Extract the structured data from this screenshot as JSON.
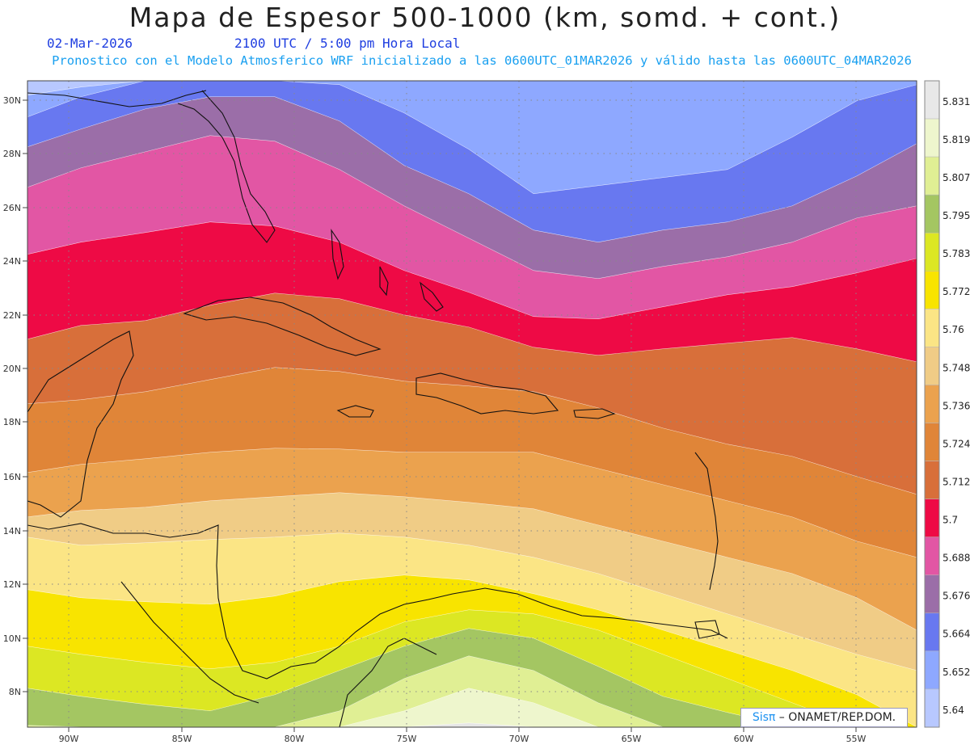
{
  "header": {
    "title": "Mapa de Espesor 500-1000 (km, somd. + cont.)",
    "date": "02-Mar-2026",
    "time": "2100 UTC / 5:00 pm Hora Local",
    "subtitle": "Pronostico con el Modelo Atmosferico WRF inicializado a las 0600UTC_01MAR2026 y válido hasta las  0600UTC_04MAR2026"
  },
  "map": {
    "lon_labels": [
      "90W",
      "85W",
      "80W",
      "75W",
      "70W",
      "65W",
      "60W",
      "55W"
    ],
    "lat_labels": [
      "30N",
      "28N",
      "26N",
      "24N",
      "22N",
      "20N",
      "18N",
      "16N",
      "14N",
      "12N",
      "10N",
      "8N"
    ],
    "field": "500-1000 hPa thickness (km)",
    "bands_north_to_south": [
      {
        "value": "5.64",
        "color": "#b8c8ff"
      },
      {
        "value": "5.652",
        "color": "#8ea8ff"
      },
      {
        "value": "5.664",
        "color": "#6878f0"
      },
      {
        "value": "5.676",
        "color": "#9b6ea8"
      },
      {
        "value": "5.688",
        "color": "#e256a4"
      },
      {
        "value": "5.7",
        "color": "#ee0a45"
      },
      {
        "value": "5.712",
        "color": "#d86f3a"
      },
      {
        "value": "5.724",
        "color": "#e08538"
      },
      {
        "value": "5.736",
        "color": "#eba24e"
      },
      {
        "value": "5.748",
        "color": "#f0cc86"
      },
      {
        "value": "5.76",
        "color": "#fbe585"
      },
      {
        "value": "5.772",
        "color": "#f8e400"
      },
      {
        "value": "5.783",
        "color": "#dce723"
      },
      {
        "value": "5.795",
        "color": "#a4c662"
      },
      {
        "value": "5.807",
        "color": "#e0ef94"
      },
      {
        "value": "5.819",
        "color": "#eef6cd"
      },
      {
        "value": "5.831",
        "color": "#e6e6e6"
      }
    ]
  },
  "colorbar": {
    "labels": [
      "5.831",
      "5.819",
      "5.807",
      "5.795",
      "5.783",
      "5.772",
      "5.76",
      "5.748",
      "5.736",
      "5.724",
      "5.712",
      "5.7",
      "5.688",
      "5.676",
      "5.664",
      "5.652",
      "5.64"
    ],
    "colors_top_to_bottom": [
      "#e8e8e8",
      "#eef6cd",
      "#e0ef94",
      "#a4c662",
      "#dce723",
      "#f8e400",
      "#fbe585",
      "#f0cc86",
      "#eba24e",
      "#e08538",
      "#d86f3a",
      "#ee0a45",
      "#e256a4",
      "#9b6ea8",
      "#6878f0",
      "#8ea8ff",
      "#b8c8ff"
    ]
  },
  "credit": {
    "sis": "Sisπ",
    "rest": " – ONAMET/REP.DOM."
  }
}
